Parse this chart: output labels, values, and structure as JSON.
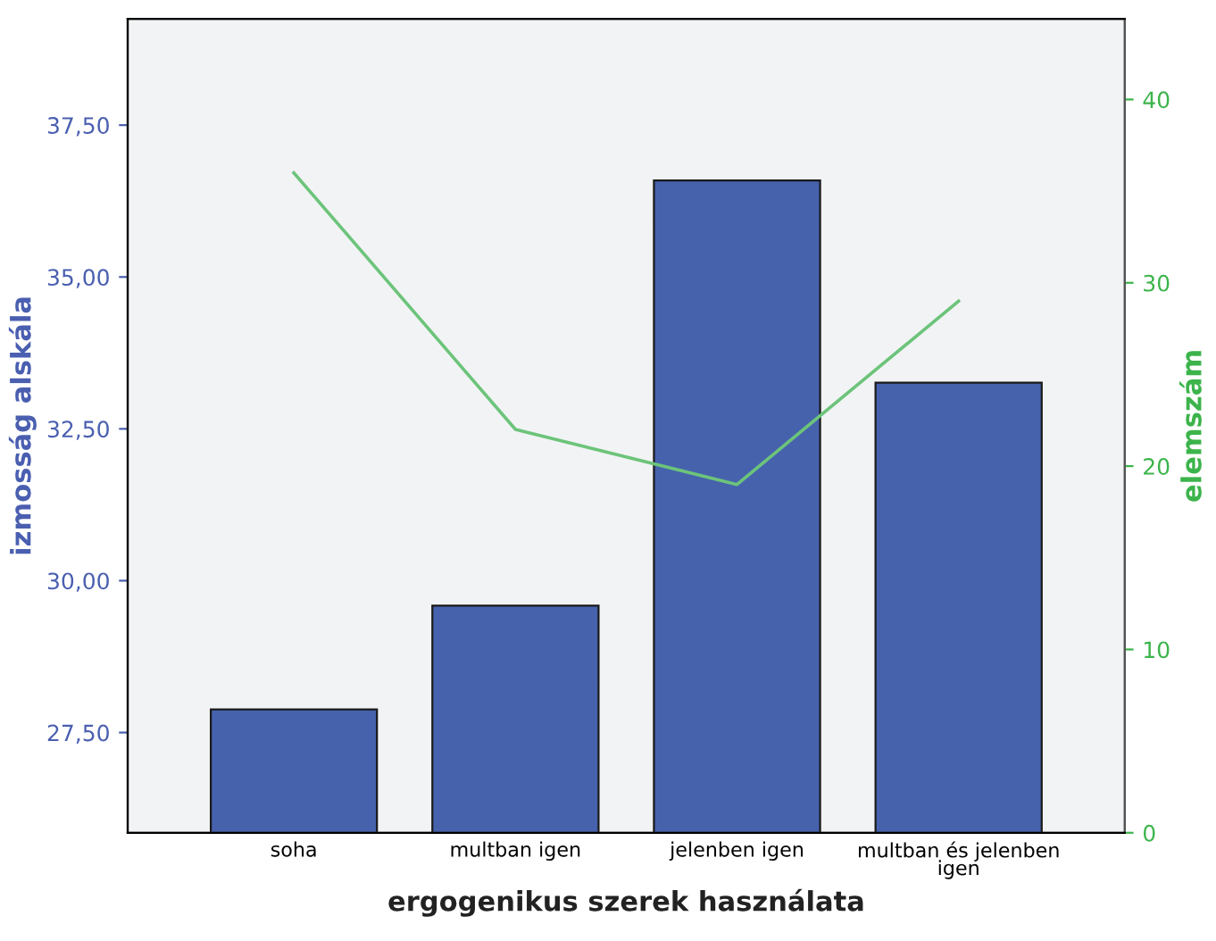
{
  "chart_data": {
    "type": "bar",
    "xlabel": "ergogenikus szerek használata",
    "ylabel": "izmosság alskála",
    "y2label": "elemszám",
    "categories": [
      "soha",
      "multban igen",
      "jelenben igen",
      "multban és jelenben\nigen"
    ],
    "series": [
      {
        "color": "#4662ad",
        "values": [
          27.88,
          29.59,
          36.59,
          33.26
        ]
      },
      {
        "type": "line",
        "axis": "y2",
        "color": "#6cc47a",
        "values": [
          36,
          22,
          19,
          29
        ]
      }
    ],
    "ylim": [
      25.85,
      39.25
    ],
    "yticks": [
      {
        "value": 27.5,
        "label": "27,50"
      },
      {
        "value": 30,
        "label": "30,00"
      },
      {
        "value": 32.5,
        "label": "32,50"
      },
      {
        "value": 35,
        "label": "35,00"
      },
      {
        "value": 37.5,
        "label": "37,50"
      }
    ],
    "y2lim": [
      0,
      44.4
    ],
    "y2ticks": [
      0,
      10,
      20,
      30,
      40
    ],
    "grid": false,
    "legend": false
  }
}
